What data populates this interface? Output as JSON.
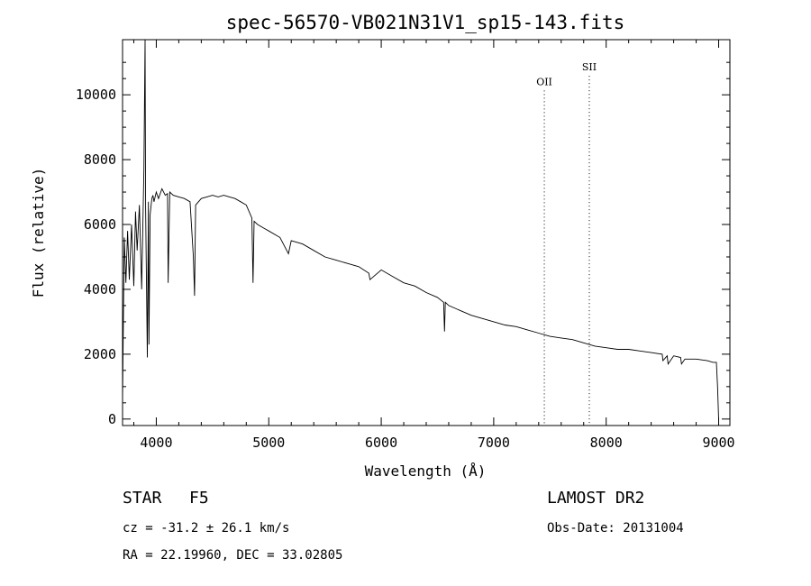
{
  "chart_data": {
    "type": "line",
    "title": "spec-56570-VB021N31V1_sp15-143.fits",
    "xlabel": "Wavelength (Å)",
    "ylabel": "Flux (relative)",
    "xlim": [
      3700,
      9100
    ],
    "ylim": [
      -200,
      11700
    ],
    "xticks": [
      4000,
      5000,
      6000,
      7000,
      8000,
      9000
    ],
    "yticks": [
      0,
      2000,
      4000,
      6000,
      8000,
      10000
    ],
    "grid": false,
    "series": [
      {
        "x": [
          3700,
          3715,
          3730,
          3745,
          3760,
          3780,
          3800,
          3815,
          3830,
          3850,
          3870,
          3890,
          3900,
          3905,
          3920,
          3930,
          3935,
          3945,
          3960,
          3970,
          3980,
          4000,
          4020,
          4050,
          4080,
          4100,
          4105,
          4120,
          4150,
          4200,
          4250,
          4300,
          4330,
          4340,
          4350,
          4400,
          4450,
          4500,
          4550,
          4600,
          4650,
          4700,
          4750,
          4800,
          4850,
          4860,
          4870,
          4900,
          4950,
          5000,
          5100,
          5175,
          5200,
          5300,
          5400,
          5500,
          5600,
          5700,
          5800,
          5890,
          5900,
          6000,
          6100,
          6200,
          6300,
          6400,
          6500,
          6555,
          6563,
          6570,
          6600,
          6700,
          6800,
          6900,
          7000,
          7100,
          7200,
          7300,
          7400,
          7500,
          7600,
          7700,
          7800,
          7900,
          8000,
          8100,
          8200,
          8300,
          8400,
          8498,
          8505,
          8542,
          8550,
          8600,
          8662,
          8670,
          8700,
          8800,
          8900,
          8950,
          8980,
          8990,
          9000
        ],
        "y": [
          600,
          5600,
          4200,
          5800,
          4300,
          6000,
          4100,
          6400,
          5200,
          6600,
          4000,
          7700,
          11700,
          6500,
          1900,
          6700,
          2300,
          6300,
          6800,
          6900,
          6700,
          7000,
          6800,
          7100,
          6900,
          6950,
          4200,
          7000,
          6900,
          6850,
          6800,
          6700,
          5000,
          3800,
          6600,
          6800,
          6850,
          6900,
          6850,
          6900,
          6850,
          6800,
          6700,
          6600,
          6200,
          4200,
          6100,
          6000,
          5900,
          5800,
          5600,
          5100,
          5500,
          5400,
          5200,
          5000,
          4900,
          4800,
          4700,
          4500,
          4300,
          4600,
          4400,
          4200,
          4100,
          3900,
          3750,
          3600,
          2700,
          3600,
          3500,
          3350,
          3200,
          3100,
          3000,
          2900,
          2850,
          2750,
          2650,
          2550,
          2500,
          2450,
          2350,
          2250,
          2200,
          2150,
          2150,
          2100,
          2050,
          2000,
          1800,
          1950,
          1700,
          1950,
          1900,
          1700,
          1850,
          1850,
          1800,
          1750,
          1750,
          1000,
          0
        ]
      }
    ],
    "annotations": [
      {
        "label": "OII",
        "x": 7450,
        "label_y": 10300
      },
      {
        "label": "SII",
        "x": 7850,
        "label_y": 10750
      }
    ]
  },
  "info": {
    "object_type": "STAR",
    "subclass": "F5",
    "survey": "LAMOST DR2",
    "redshift_line": "cz = -31.2 ± 26.1 km/s",
    "obs_date": "Obs-Date: 20131004",
    "coords": "RA =  22.19960, DEC =  33.02805"
  }
}
